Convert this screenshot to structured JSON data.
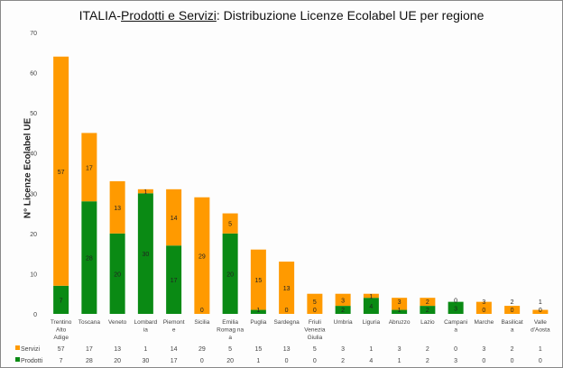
{
  "chart_data": {
    "type": "bar",
    "stacked": true,
    "title_prefix": "ITALIA-",
    "title_underlined": "Prodotti e Servizi",
    "title_suffix": ": Distribuzione  Licenze Ecolabel UE  per regione",
    "xlabel": "",
    "ylabel": "N° Licenze  Ecolabel UE",
    "ylim": [
      0,
      70
    ],
    "yticks": [
      0,
      10,
      20,
      30,
      40,
      50,
      60,
      70
    ],
    "grid": false,
    "legend": "data-table-bottom",
    "categories": [
      "Trentino Alto Adige",
      "Toscana",
      "Veneto",
      "Lombardia",
      "Piemonte",
      "Sicilia",
      "Emilia Romagna",
      "Puglia",
      "Sardegna",
      "Friuli Venezia Giulia",
      "Umbria",
      "Liguria",
      "Abruzzo",
      "Lazio",
      "Campania",
      "Marche",
      "Basilicata",
      "Valle d'Aosta"
    ],
    "category_lines": [
      [
        "Trentino",
        "Alto",
        "Adige"
      ],
      [
        "Toscana"
      ],
      [
        "Veneto"
      ],
      [
        "Lombard",
        "ia"
      ],
      [
        "Piemont",
        "e"
      ],
      [
        "Sicilia"
      ],
      [
        "Emilia",
        "Romag na",
        "a"
      ],
      [
        "Puglia"
      ],
      [
        "Sardegna"
      ],
      [
        "Friuli",
        "Venezia",
        "Giulia"
      ],
      [
        "Umbria"
      ],
      [
        "Liguria"
      ],
      [
        "Abruzzo"
      ],
      [
        "Lazio"
      ],
      [
        "Campani",
        "a"
      ],
      [
        "Marche"
      ],
      [
        "Basilicat",
        "a"
      ],
      [
        "Valle",
        "d'Aosta"
      ]
    ],
    "series": [
      {
        "name": "Prodotti",
        "color": "#0a8a14",
        "values": [
          7,
          28,
          20,
          30,
          17,
          0,
          20,
          1,
          0,
          0,
          2,
          4,
          1,
          2,
          3,
          0,
          0,
          0
        ]
      },
      {
        "name": "Servizi",
        "color": "#ff9a00",
        "values": [
          57,
          17,
          13,
          1,
          14,
          29,
          5,
          15,
          13,
          5,
          3,
          1,
          3,
          2,
          0,
          3,
          2,
          1
        ]
      }
    ]
  }
}
